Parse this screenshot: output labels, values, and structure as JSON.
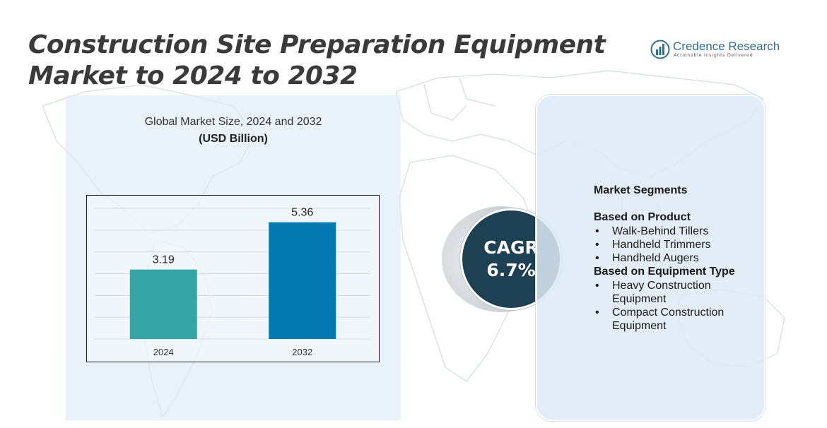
{
  "title": "Construction Site Preparation Equipment Market to 2024 to 2032",
  "logo": {
    "name": "Credence Research",
    "tagline": "Actionable Insights Delivered"
  },
  "chart_heading": "Global Market Size, 2024 and 2032",
  "chart_unit": "(USD Billion)",
  "chart_data": {
    "type": "bar",
    "categories": [
      "2024",
      "2032"
    ],
    "values": [
      3.19,
      5.36
    ],
    "data_labels": [
      "3.19",
      "5.36"
    ],
    "colors": [
      "#36a3a4",
      "#057ab0"
    ],
    "title": "Global Market Size, 2024 and 2032",
    "ylabel": "",
    "xlabel": "",
    "ylim": [
      0,
      6
    ],
    "grid": true
  },
  "cagr": {
    "label": "CAGR",
    "value": "6.7%"
  },
  "segments": {
    "title": "Market Segments",
    "groups": [
      {
        "heading": "Based on Product",
        "items": [
          "Walk-Behind Tillers",
          "Handheld Trimmers",
          "Handheld Augers"
        ]
      },
      {
        "heading": "Based on Equipment Type",
        "items": [
          "Heavy Construction Equipment",
          "Compact Construction Equipment"
        ]
      }
    ]
  }
}
